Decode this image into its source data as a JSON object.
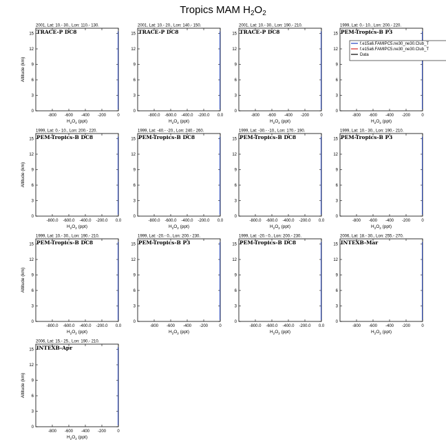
{
  "figure": {
    "title_main": "Tropics MAM H",
    "title_sub": "2",
    "title_tail": "O",
    "title_sub2": "2"
  },
  "colors": {
    "axis": "#000000",
    "series_1": "#1f3fbf",
    "series_2": "#d42020",
    "data": "#000000"
  },
  "chart_data": [
    {
      "type": "line",
      "subtitle": "2001, Lat: 10.- 30., Lon: 110.- 130.",
      "caption": "TRACE-P DC8",
      "xlabel": "H2O2 (ppt)",
      "ylabel": "Altitude (km)",
      "xlim": [
        -1000,
        0
      ],
      "ylim": [
        0,
        16
      ],
      "xticks": [
        "-800",
        "-600",
        "-400",
        "-200",
        "0"
      ],
      "xtick_values": [
        -800,
        -600,
        -400,
        -200,
        0
      ],
      "yticks": [
        "0",
        "3",
        "6",
        "9",
        "12",
        "15"
      ],
      "ytick_values": [
        0,
        3,
        6,
        9,
        12,
        15
      ],
      "grid": false,
      "series": []
    },
    {
      "type": "line",
      "subtitle": "2001, Lat: 10.- 20., Lon: 140.- 150.",
      "caption": "TRACE-P DC8",
      "xlabel": "H2O2 (ppt)",
      "ylabel": "",
      "xlim": [
        -1000,
        0
      ],
      "ylim": [
        0,
        16
      ],
      "xticks": [
        "-800.0",
        "-600.0",
        "-400.0",
        "-200.0",
        "0.0"
      ],
      "xtick_values": [
        -800,
        -600,
        -400,
        -200,
        0
      ],
      "yticks": [
        "0",
        "3",
        "6",
        "9",
        "12",
        "15"
      ],
      "ytick_values": [
        0,
        3,
        6,
        9,
        12,
        15
      ],
      "grid": false,
      "series": []
    },
    {
      "type": "line",
      "subtitle": "2001, Lat: 10.- 30., Lon: 190.- 210.",
      "caption": "TRACE-P DC8",
      "xlabel": "H2O2 (ppt)",
      "ylabel": "",
      "xlim": [
        -1000,
        0
      ],
      "ylim": [
        0,
        16
      ],
      "xticks": [
        "-800",
        "-600",
        "-400",
        "-200",
        "0"
      ],
      "xtick_values": [
        -800,
        -600,
        -400,
        -200,
        0
      ],
      "yticks": [
        "0",
        "3",
        "6",
        "9",
        "12",
        "15"
      ],
      "ytick_values": [
        0,
        3,
        6,
        9,
        12,
        15
      ],
      "grid": false,
      "series": []
    },
    {
      "type": "line",
      "subtitle": "1999, Lat: 0.- 10., Lon: 200.- 220.",
      "caption": "PEM-Tropics-B P3",
      "xlabel": "H2O2 (ppt)",
      "ylabel": "",
      "xlim": [
        -1000,
        0
      ],
      "ylim": [
        0,
        16
      ],
      "xticks": [
        "-800",
        "-600",
        "-400",
        "-200",
        "0"
      ],
      "xtick_values": [
        -800,
        -600,
        -400,
        -200,
        0
      ],
      "yticks": [
        "0",
        "3",
        "6",
        "9",
        "12",
        "15"
      ],
      "ytick_values": [
        0,
        3,
        6,
        9,
        12,
        15
      ],
      "grid": false,
      "legend": "top-right",
      "series": [
        {
          "name": "f.e15a6.FAMIPC5.ne30_ne30.Club_T",
          "color": "#1f3fbf",
          "values": []
        },
        {
          "name": "f.e15a6.FAMIPC5.ne30_ne30.Club_T",
          "color": "#d42020",
          "values": []
        },
        {
          "name": "Data",
          "color": "#000000",
          "values": []
        }
      ]
    },
    {
      "type": "line",
      "subtitle": "1999, Lat: 0.- 10., Lon: 200.- 220.",
      "caption": "PEM-Tropics-B DC8",
      "xlabel": "H2O2 (ppt)",
      "ylabel": "Altitude (km)",
      "xlim": [
        -1000,
        0
      ],
      "ylim": [
        0,
        16
      ],
      "xticks": [
        "-800.0",
        "-600.0",
        "-400.0",
        "-200.0",
        "0.0"
      ],
      "xtick_values": [
        -800,
        -600,
        -400,
        -200,
        0
      ],
      "yticks": [
        "0",
        "3",
        "6",
        "9",
        "12",
        "15"
      ],
      "ytick_values": [
        0,
        3,
        6,
        9,
        12,
        15
      ],
      "grid": false,
      "series": []
    },
    {
      "type": "line",
      "subtitle": "1999, Lat: -40.- -20., Lon: 240.- 260.",
      "caption": "PEM-Tropics-B DC8",
      "xlabel": "H2O2 (ppt)",
      "ylabel": "",
      "xlim": [
        -1000,
        0
      ],
      "ylim": [
        0,
        16
      ],
      "xticks": [
        "-800.0",
        "-600.0",
        "-400.0",
        "-200.0",
        "0.0"
      ],
      "xtick_values": [
        -800,
        -600,
        -400,
        -200,
        0
      ],
      "yticks": [
        "0",
        "3",
        "6",
        "9",
        "12",
        "15"
      ],
      "ytick_values": [
        0,
        3,
        6,
        9,
        12,
        15
      ],
      "grid": false,
      "series": []
    },
    {
      "type": "line",
      "subtitle": "1999, Lat: -30.- -10., Lon: 170.- 190.",
      "caption": "PEM-Tropics-B DC8",
      "xlabel": "H2O2 (ppt)",
      "ylabel": "",
      "xlim": [
        -1000,
        0
      ],
      "ylim": [
        0,
        16
      ],
      "xticks": [
        "-800.0",
        "-600.0",
        "-400.0",
        "-200.0",
        "0.0"
      ],
      "xtick_values": [
        -800,
        -600,
        -400,
        -200,
        0
      ],
      "yticks": [
        "0",
        "3",
        "6",
        "9",
        "12",
        "15"
      ],
      "ytick_values": [
        0,
        3,
        6,
        9,
        12,
        15
      ],
      "grid": false,
      "series": []
    },
    {
      "type": "line",
      "subtitle": "1999, Lat: 10.- 30., Lon: 190.- 210.",
      "caption": "PEM-Tropics-B P3",
      "xlabel": "H2O2 (ppt)",
      "ylabel": "",
      "xlim": [
        -1000,
        0
      ],
      "ylim": [
        0,
        16
      ],
      "xticks": [
        "-800",
        "-600",
        "-400",
        "-200",
        "0"
      ],
      "xtick_values": [
        -800,
        -600,
        -400,
        -200,
        0
      ],
      "yticks": [
        "0",
        "3",
        "6",
        "9",
        "12",
        "15"
      ],
      "ytick_values": [
        0,
        3,
        6,
        9,
        12,
        15
      ],
      "grid": false,
      "series": []
    },
    {
      "type": "line",
      "subtitle": "1999, Lat: 10.- 30., Lon: 190.- 210.",
      "caption": "PEM-Tropics-B DC8",
      "xlabel": "H2O2 (ppt)",
      "ylabel": "Altitude (km)",
      "xlim": [
        -1000,
        0
      ],
      "ylim": [
        0,
        16
      ],
      "xticks": [
        "-800.0",
        "-600.0",
        "-400.0",
        "-200.0",
        "0.0"
      ],
      "xtick_values": [
        -800,
        -600,
        -400,
        -200,
        0
      ],
      "yticks": [
        "0",
        "3",
        "6",
        "9",
        "12",
        "15"
      ],
      "ytick_values": [
        0,
        3,
        6,
        9,
        12,
        15
      ],
      "grid": false,
      "series": []
    },
    {
      "type": "line",
      "subtitle": "1999, Lat: -20.- 0., Lon: 200.- 230.",
      "caption": "PEM-Tropics-B P3",
      "xlabel": "H2O2 (ppt)",
      "ylabel": "",
      "xlim": [
        -1000,
        0
      ],
      "ylim": [
        0,
        16
      ],
      "xticks": [
        "-800",
        "-600",
        "-400",
        "-200",
        "0"
      ],
      "xtick_values": [
        -800,
        -600,
        -400,
        -200,
        0
      ],
      "yticks": [
        "0",
        "3",
        "6",
        "9",
        "12",
        "15"
      ],
      "ytick_values": [
        0,
        3,
        6,
        9,
        12,
        15
      ],
      "grid": false,
      "series": []
    },
    {
      "type": "line",
      "subtitle": "1999, Lat: -20.- 0., Lon: 200.- 230.",
      "caption": "PEM-Tropics-B DC8",
      "xlabel": "H2O2 (ppt)",
      "ylabel": "",
      "xlim": [
        -1000,
        0
      ],
      "ylim": [
        0,
        16
      ],
      "xticks": [
        "-800.0",
        "-600.0",
        "-400.0",
        "-200.0",
        "0.0"
      ],
      "xtick_values": [
        -800,
        -600,
        -400,
        -200,
        0
      ],
      "yticks": [
        "0",
        "3",
        "6",
        "9",
        "12",
        "15"
      ],
      "ytick_values": [
        0,
        3,
        6,
        9,
        12,
        15
      ],
      "grid": false,
      "series": []
    },
    {
      "type": "line",
      "subtitle": "2006, Lat: 18.- 30., Lon: 255.- 270.",
      "caption": "INTEXB-Mar",
      "xlabel": "H2O2 (ppt)",
      "ylabel": "",
      "xlim": [
        -1000,
        0
      ],
      "ylim": [
        0,
        16
      ],
      "xticks": [
        "-800",
        "-600",
        "-400",
        "-200",
        "0"
      ],
      "xtick_values": [
        -800,
        -600,
        -400,
        -200,
        0
      ],
      "yticks": [
        "0",
        "3",
        "6",
        "9",
        "12",
        "15"
      ],
      "ytick_values": [
        0,
        3,
        6,
        9,
        12,
        15
      ],
      "grid": false,
      "series": []
    },
    {
      "type": "line",
      "subtitle": "2006, Lat: 15.- 25., Lon: 190.- 210.",
      "caption": "INTEXB-Apr",
      "xlabel": "H2O2 (ppt)",
      "ylabel": "Altitude (km)",
      "xlim": [
        -1000,
        0
      ],
      "ylim": [
        0,
        16
      ],
      "xticks": [
        "-800",
        "-600",
        "-400",
        "-200",
        "0"
      ],
      "xtick_values": [
        -800,
        -600,
        -400,
        -200,
        0
      ],
      "yticks": [
        "0",
        "3",
        "6",
        "9",
        "12",
        "15"
      ],
      "ytick_values": [
        0,
        3,
        6,
        9,
        12,
        15
      ],
      "grid": false,
      "series": []
    }
  ]
}
